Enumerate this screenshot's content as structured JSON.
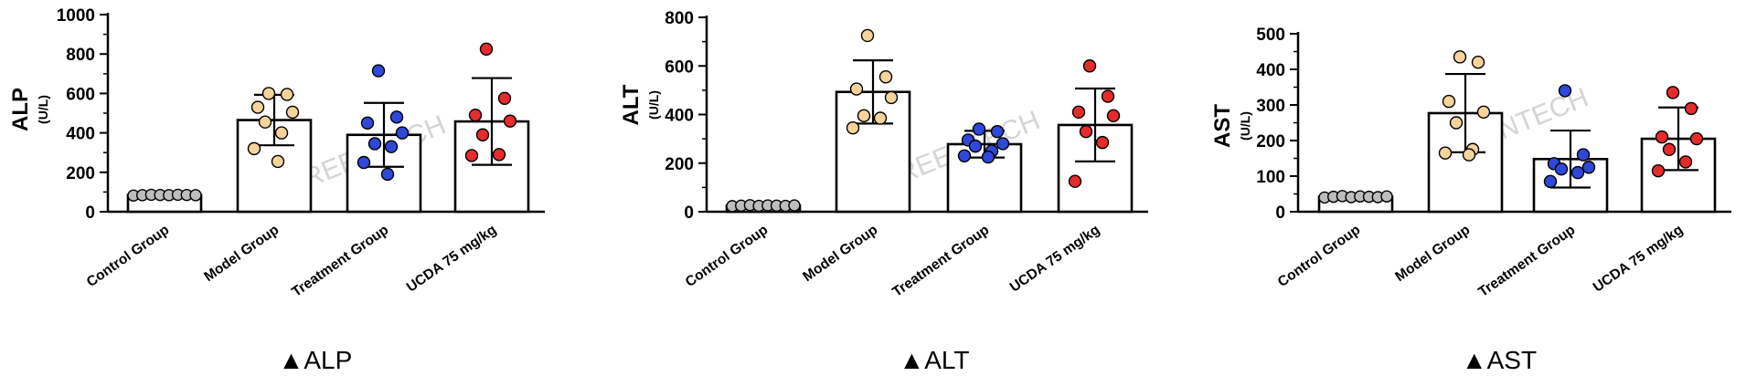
{
  "colors": {
    "control": "#bdbdbd",
    "model": "#f6d39b",
    "treatment": "#3048d8",
    "ucda": "#e52b2b"
  },
  "watermark": "GREENTECH",
  "chart_data": [
    {
      "type": "bar",
      "caption": "▲ALP",
      "ylabel": "ALP",
      "yunit": "(U/L)",
      "ylim": [
        0,
        1000
      ],
      "yticks": [
        0,
        200,
        400,
        600,
        800,
        1000
      ],
      "categories": [
        "Control Group",
        "Model Group",
        "Treatment Group",
        "UCDA 75 mg/kg"
      ],
      "values": [
        85,
        465,
        390,
        458
      ],
      "error": [
        8,
        128,
        162,
        220
      ],
      "points": [
        [
          82,
          84,
          86,
          85,
          84,
          86,
          85,
          84
        ],
        [
          600,
          595,
          530,
          505,
          455,
          400,
          320,
          255
        ],
        [
          715,
          480,
          450,
          400,
          345,
          330,
          250,
          190
        ],
        [
          825,
          575,
          490,
          460,
          390,
          290,
          285
        ]
      ]
    },
    {
      "type": "bar",
      "caption": "▲ALT",
      "ylabel": "ALT",
      "yunit": "(U/L)",
      "ylim": [
        0,
        800
      ],
      "yticks": [
        0,
        200,
        400,
        600,
        800
      ],
      "categories": [
        "Control Group",
        "Model Group",
        "Treatment Group",
        "UCDA 75 mg/kg"
      ],
      "values": [
        25,
        493,
        278,
        357
      ],
      "error": [
        5,
        130,
        55,
        150
      ],
      "points": [
        [
          23,
          25,
          27,
          24,
          26,
          25,
          24,
          26
        ],
        [
          725,
          555,
          505,
          470,
          395,
          385,
          345
        ],
        [
          340,
          330,
          295,
          280,
          270,
          250,
          230,
          225
        ],
        [
          600,
          475,
          410,
          395,
          330,
          285,
          125
        ]
      ]
    },
    {
      "type": "bar",
      "caption": "▲AST",
      "ylabel": "AST",
      "yunit": "(U/L)",
      "ylim": [
        0,
        500
      ],
      "yticks": [
        0,
        100,
        200,
        300,
        400,
        500
      ],
      "categories": [
        "Control Group",
        "Model Group",
        "Treatment Group",
        "UCDA 75 mg/kg"
      ],
      "values": [
        42,
        277,
        148,
        205
      ],
      "error": [
        5,
        110,
        80,
        88
      ],
      "points": [
        [
          40,
          42,
          44,
          41,
          43,
          42,
          41,
          43
        ],
        [
          435,
          420,
          310,
          280,
          250,
          175,
          165,
          160
        ],
        [
          340,
          160,
          135,
          125,
          120,
          110,
          85
        ],
        [
          335,
          290,
          210,
          205,
          175,
          140,
          115
        ]
      ]
    }
  ]
}
